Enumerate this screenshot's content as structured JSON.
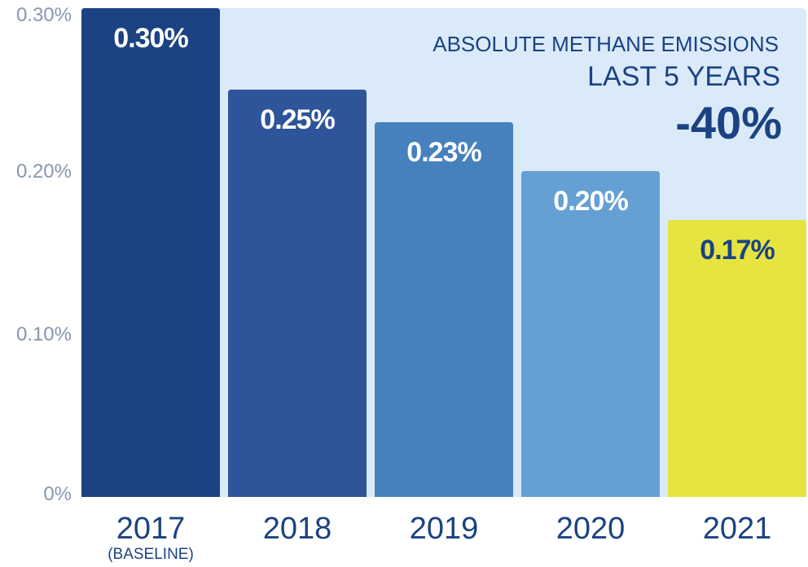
{
  "chart_data": {
    "type": "bar",
    "categories": [
      "2017",
      "2018",
      "2019",
      "2020",
      "2021"
    ],
    "category_sublabels": [
      "(BASELINE)",
      "",
      "",
      "",
      ""
    ],
    "values": [
      0.3,
      0.25,
      0.23,
      0.2,
      0.17
    ],
    "value_labels": [
      "0.30%",
      "0.25%",
      "0.23%",
      "0.20%",
      "0.17%"
    ],
    "bar_colors": [
      "#1b4283",
      "#2e5499",
      "#4681bd",
      "#64a0d3",
      "#e6e440"
    ],
    "label_colors": [
      "#ffffff",
      "#ffffff",
      "#ffffff",
      "#ffffff",
      "#1b4283"
    ],
    "ylim": [
      0,
      0.3
    ],
    "yticks": [
      {
        "value": 0,
        "label": "0%"
      },
      {
        "value": 0.1,
        "label": "0.10%"
      },
      {
        "value": 0.2,
        "label": "0.20%"
      },
      {
        "value": 0.3,
        "label": "0.30%"
      }
    ],
    "title": "",
    "xlabel": "",
    "ylabel": "",
    "grid": false,
    "annotation": {
      "line1": "ABSOLUTE METHANE EMISSIONS",
      "line2": "LAST 5 YEARS",
      "line3": "-40%",
      "placement": "top-right"
    },
    "background_color": "#daeaf8"
  }
}
